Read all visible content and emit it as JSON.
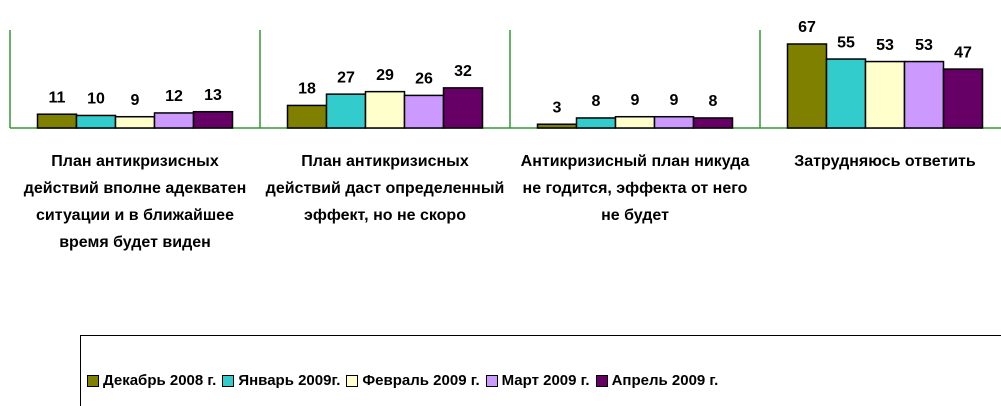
{
  "chart_data": {
    "type": "bar",
    "categories": [
      "План антикризисных действий вполне адекватен ситуации и в ближайшее время будет виден",
      "План антикризисных действий даст определенный эффект, но не скоро",
      "Антикризисный план никуда не годится, эффекта от него не будет",
      "Затрудняюсь ответить"
    ],
    "series": [
      {
        "name": "Декабрь 2008 г.",
        "color": "#808000",
        "values": [
          11,
          18,
          3,
          67
        ]
      },
      {
        "name": "Январь 2009г.",
        "color": "#33CCCC",
        "values": [
          10,
          27,
          8,
          55
        ]
      },
      {
        "name": "Февраль 2009 г.",
        "color": "#FFFFCC",
        "values": [
          9,
          29,
          9,
          53
        ]
      },
      {
        "name": "Март 2009 г.",
        "color": "#CC99FF",
        "values": [
          12,
          26,
          9,
          53
        ]
      },
      {
        "name": "Апрель 2009 г.",
        "color": "#660066",
        "values": [
          13,
          32,
          8,
          47
        ]
      }
    ],
    "legend": "bottom"
  }
}
